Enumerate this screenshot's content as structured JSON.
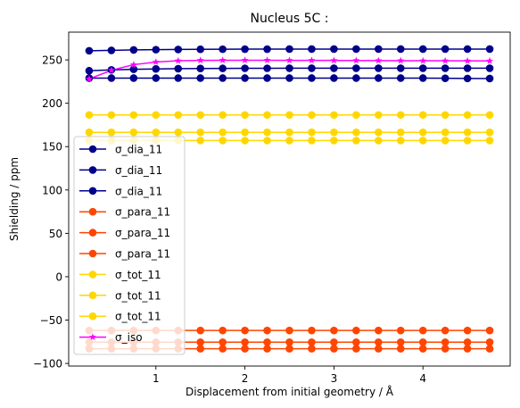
{
  "chart_data": {
    "type": "line",
    "title": "Nucleus 5C :",
    "xlabel": "Displacement from initial geometry / Å",
    "ylabel": "Shielding / ppm",
    "xlim": [
      0.02,
      4.98
    ],
    "ylim": [
      -103,
      282
    ],
    "xticks": [
      1,
      2,
      3,
      4
    ],
    "yticks": [
      -100,
      -50,
      0,
      50,
      100,
      150,
      200,
      250
    ],
    "grid": false,
    "legend_position": "lower-left",
    "x": [
      0.25,
      0.5,
      0.75,
      1.0,
      1.25,
      1.5,
      1.75,
      2.0,
      2.25,
      2.5,
      2.75,
      3.0,
      3.25,
      3.5,
      3.75,
      4.0,
      4.25,
      4.5,
      4.75
    ],
    "series": [
      {
        "name": "σ_dia_11",
        "color": "#00008b",
        "marker": "circle",
        "values": [
          260.5,
          261.0,
          261.5,
          261.8,
          262.0,
          262.2,
          262.3,
          262.4,
          262.4,
          262.5,
          262.5,
          262.5,
          262.5,
          262.5,
          262.5,
          262.5,
          262.5,
          262.5,
          262.5
        ]
      },
      {
        "name": "σ_dia_11",
        "color": "#00008b",
        "marker": "circle",
        "values": [
          237.5,
          238.5,
          239.2,
          239.6,
          239.9,
          240.1,
          240.2,
          240.3,
          240.3,
          240.4,
          240.4,
          240.4,
          240.4,
          240.4,
          240.4,
          240.4,
          240.4,
          240.4,
          240.4
        ]
      },
      {
        "name": "σ_dia_11",
        "color": "#00008b",
        "marker": "circle",
        "values": [
          229.0,
          229.0,
          229.0,
          229.0,
          229.0,
          229.0,
          229.0,
          229.0,
          229.0,
          229.0,
          229.0,
          229.0,
          229.0,
          229.0,
          229.0,
          229.0,
          228.8,
          228.6,
          228.5
        ]
      },
      {
        "name": "σ_para_11",
        "color": "#ff4500",
        "marker": "circle",
        "values": [
          -62.0,
          -62.0,
          -62.0,
          -62.0,
          -62.0,
          -62.0,
          -62.0,
          -62.0,
          -62.0,
          -62.0,
          -62.0,
          -62.0,
          -62.0,
          -62.0,
          -62.0,
          -62.0,
          -62.0,
          -62.0,
          -62.0
        ]
      },
      {
        "name": "σ_para_11",
        "color": "#ff4500",
        "marker": "circle",
        "values": [
          -75.5,
          -75.5,
          -75.5,
          -75.5,
          -75.5,
          -75.5,
          -75.5,
          -75.5,
          -75.5,
          -75.5,
          -75.5,
          -75.5,
          -75.5,
          -75.5,
          -75.5,
          -75.5,
          -75.5,
          -75.5,
          -75.5
        ]
      },
      {
        "name": "σ_para_11",
        "color": "#ff4500",
        "marker": "circle",
        "values": [
          -83.0,
          -83.0,
          -83.0,
          -83.0,
          -83.0,
          -83.0,
          -83.0,
          -83.0,
          -83.0,
          -83.0,
          -83.0,
          -83.0,
          -83.0,
          -83.0,
          -83.0,
          -83.0,
          -83.0,
          -83.0,
          -83.0
        ]
      },
      {
        "name": "σ_tot_11",
        "color": "#ffd700",
        "marker": "circle",
        "values": [
          186.5,
          186.5,
          186.5,
          186.5,
          186.5,
          186.5,
          186.5,
          186.5,
          186.5,
          186.5,
          186.5,
          186.5,
          186.5,
          186.5,
          186.5,
          186.5,
          186.5,
          186.5,
          186.5
        ]
      },
      {
        "name": "σ_tot_11",
        "color": "#ffd700",
        "marker": "circle",
        "values": [
          166.5,
          166.5,
          166.5,
          166.5,
          166.5,
          166.5,
          166.5,
          166.5,
          166.5,
          166.5,
          166.5,
          166.5,
          166.5,
          166.5,
          166.5,
          166.5,
          166.5,
          166.5,
          166.5
        ]
      },
      {
        "name": "σ_tot_11",
        "color": "#ffd700",
        "marker": "circle",
        "values": [
          157.0,
          157.0,
          157.0,
          157.0,
          157.0,
          157.0,
          157.0,
          157.0,
          157.0,
          157.0,
          157.0,
          157.0,
          157.0,
          157.0,
          157.0,
          157.0,
          157.0,
          157.0,
          157.0
        ]
      },
      {
        "name": "σ_iso",
        "color": "#ff00ff",
        "marker": "star",
        "values": [
          228.0,
          238.0,
          244.5,
          247.5,
          249.0,
          249.5,
          249.6,
          249.6,
          249.6,
          249.5,
          249.5,
          249.4,
          249.3,
          249.2,
          249.1,
          249.0,
          249.0,
          248.9,
          248.8
        ]
      }
    ]
  }
}
